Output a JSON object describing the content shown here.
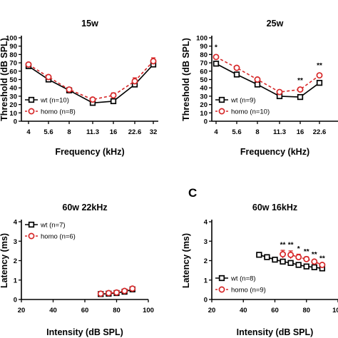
{
  "panel_letter": "C",
  "chart_data": [
    {
      "type": "line",
      "title": "15w",
      "xlabel": "Frequency (kHz)",
      "ylabel": "Threshold (dB SPL)",
      "x_scale": "categorical",
      "x": [
        "4",
        "5.6",
        "8",
        "11.3",
        "16",
        "22.6",
        "32"
      ],
      "yticks": [
        0,
        10,
        20,
        30,
        40,
        50,
        60,
        70,
        80,
        90,
        100
      ],
      "ylim": [
        0,
        100
      ],
      "series": [
        {
          "name": "wt (n=10)",
          "color": "#000000",
          "marker": "square",
          "dashed": false,
          "values": [
            66,
            50,
            37,
            22,
            24,
            44,
            68
          ],
          "err": [
            2,
            2,
            2,
            2,
            2,
            3,
            3
          ]
        },
        {
          "name": "homo (n=8)",
          "color": "#d62728",
          "marker": "circle",
          "dashed": true,
          "values": [
            68,
            53,
            38,
            26,
            31,
            48,
            72
          ],
          "err": [
            2,
            2,
            2,
            2,
            3,
            4,
            4
          ]
        }
      ],
      "annotations": [],
      "legend_position": "bottom-left"
    },
    {
      "type": "line",
      "title": "25w",
      "xlabel": "Frequency (kHz)",
      "ylabel": "Threshold (dB SPL)",
      "x_scale": "categorical",
      "x": [
        "4",
        "5.6",
        "8",
        "11.3",
        "16",
        "22.6"
      ],
      "yticks": [
        0,
        10,
        20,
        30,
        40,
        50,
        60,
        70,
        80,
        90,
        100
      ],
      "ylim": [
        0,
        100
      ],
      "series": [
        {
          "name": "wt (n=9)",
          "color": "#000000",
          "marker": "square",
          "dashed": false,
          "values": [
            69,
            56,
            44,
            30,
            29,
            46
          ],
          "err": [
            1,
            1,
            1,
            1,
            1,
            1
          ]
        },
        {
          "name": "homo (n=10)",
          "color": "#d62728",
          "marker": "circle",
          "dashed": true,
          "values": [
            77,
            64,
            50,
            35,
            38,
            55
          ],
          "err": [
            2,
            2,
            2,
            2,
            2,
            2
          ]
        }
      ],
      "annotations": [
        {
          "text": "*",
          "x": "4",
          "y": 86
        },
        {
          "text": "**",
          "x": "16",
          "y": 46
        },
        {
          "text": "**",
          "x": "22.6",
          "y": 64
        }
      ],
      "legend_position": "bottom-left"
    },
    {
      "type": "line",
      "title": "60w  22kHz",
      "xlabel": "Intensity (dB SPL)",
      "ylabel": "Latency (ms)",
      "x_scale": "linear",
      "xlim": [
        20,
        100
      ],
      "xticks": [
        20,
        40,
        60,
        80,
        100
      ],
      "yticks": [
        0,
        1,
        2,
        3,
        4
      ],
      "ylim": [
        0,
        4
      ],
      "series": [
        {
          "name": "wt (n=7)",
          "color": "#000000",
          "marker": "square",
          "dashed": false,
          "x": [
            70,
            75,
            80,
            85,
            90
          ],
          "values": [
            0.28,
            0.3,
            0.33,
            0.4,
            0.52
          ],
          "err": [
            0.04,
            0.04,
            0.04,
            0.05,
            0.06
          ]
        },
        {
          "name": "homo (n=6)",
          "color": "#d62728",
          "marker": "circle",
          "dashed": true,
          "x": [
            70,
            75,
            80,
            85,
            90
          ],
          "values": [
            0.3,
            0.33,
            0.36,
            0.44,
            0.56
          ],
          "err": [
            0.05,
            0.05,
            0.05,
            0.06,
            0.07
          ]
        }
      ],
      "annotations": [],
      "legend_position": "top-left"
    },
    {
      "type": "line",
      "title": "60w  16kHz",
      "xlabel": "Intensity (dB SPL)",
      "ylabel": "Latency (ms)",
      "x_scale": "linear",
      "xlim": [
        20,
        100
      ],
      "xticks": [
        20,
        40,
        60,
        80,
        100
      ],
      "yticks": [
        0,
        1,
        2,
        3,
        4
      ],
      "ylim": [
        0,
        4
      ],
      "series": [
        {
          "name": "wt (n=8)",
          "color": "#000000",
          "marker": "square",
          "dashed": false,
          "x": [
            50,
            55,
            60,
            65,
            70,
            75,
            80,
            85,
            90
          ],
          "values": [
            2.3,
            2.18,
            2.05,
            1.95,
            1.88,
            1.78,
            1.7,
            1.66,
            1.6
          ],
          "err": [
            0.03,
            0.03,
            0.03,
            0.03,
            0.03,
            0.03,
            0.03,
            0.03,
            0.03
          ]
        },
        {
          "name": "homo (n=9)",
          "color": "#d62728",
          "marker": "circle",
          "dashed": true,
          "x": [
            65,
            70,
            75,
            80,
            85,
            90
          ],
          "values": [
            2.33,
            2.3,
            2.18,
            2.08,
            1.95,
            1.78
          ],
          "err": [
            0.2,
            0.2,
            0.15,
            0.12,
            0.1,
            0.08
          ]
        }
      ],
      "annotations": [
        {
          "text": "**",
          "x": 65,
          "y": 2.7
        },
        {
          "text": "**",
          "x": 70,
          "y": 2.7
        },
        {
          "text": "*",
          "x": 75,
          "y": 2.5
        },
        {
          "text": "**",
          "x": 80,
          "y": 2.35
        },
        {
          "text": "**",
          "x": 85,
          "y": 2.2
        },
        {
          "text": "**",
          "x": 90,
          "y": 2.0
        }
      ],
      "legend_position": "bottom-left"
    }
  ]
}
